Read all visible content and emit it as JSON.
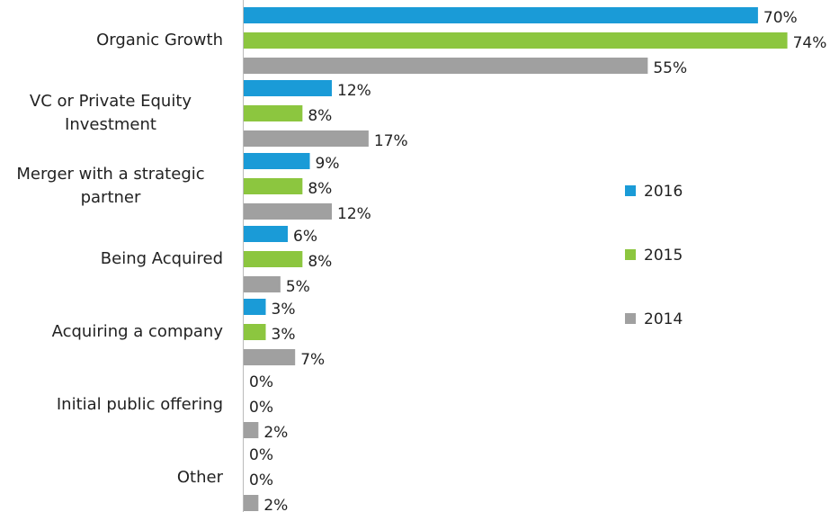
{
  "chart_data": {
    "type": "bar",
    "orientation": "horizontal",
    "categories": [
      "Organic Growth",
      "VC or Private Equity Investment",
      "Merger with a strategic partner",
      "Being Acquired",
      "Acquiring a company",
      "Initial public offering",
      "Other"
    ],
    "series": [
      {
        "name": "2016",
        "color": "#1a9bd7",
        "values": [
          70,
          12,
          9,
          6,
          3,
          0,
          0
        ],
        "value_labels": [
          "70%",
          "12%",
          "9%",
          "6%",
          "3%",
          "0%",
          "0%"
        ]
      },
      {
        "name": "2015",
        "color": "#8cc63f",
        "values": [
          74,
          8,
          8,
          8,
          3,
          0,
          0
        ],
        "value_labels": [
          "74%",
          "8%",
          "8%",
          "8%",
          "3%",
          "0%",
          "0%"
        ]
      },
      {
        "name": "2014",
        "color": "#a0a0a0",
        "values": [
          55,
          17,
          12,
          5,
          7,
          2,
          2
        ],
        "value_labels": [
          "55%",
          "17%",
          "12%",
          "5%",
          "7%",
          "2%",
          "2%"
        ]
      }
    ],
    "legend": "right"
  }
}
